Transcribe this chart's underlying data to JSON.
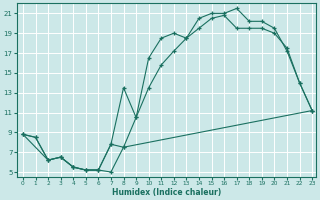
{
  "xlabel": "Humidex (Indice chaleur)",
  "bg_color": "#cce8e8",
  "grid_color": "#ffffff",
  "line_color": "#1a7060",
  "xlim": [
    -0.5,
    23.3
  ],
  "ylim": [
    4.5,
    22.0
  ],
  "xticks": [
    0,
    1,
    2,
    3,
    4,
    5,
    6,
    7,
    8,
    9,
    10,
    11,
    12,
    13,
    14,
    15,
    16,
    17,
    18,
    19,
    20,
    21,
    22,
    23
  ],
  "yticks": [
    5,
    7,
    9,
    11,
    13,
    15,
    17,
    19,
    21
  ],
  "line1_x": [
    0,
    1,
    2,
    3,
    4,
    5,
    6,
    7,
    8,
    9,
    10,
    11,
    12,
    13,
    14,
    15,
    16,
    17,
    18,
    19,
    20,
    21,
    22,
    23
  ],
  "line1_y": [
    8.8,
    8.5,
    6.2,
    6.5,
    5.5,
    5.2,
    5.2,
    7.8,
    13.5,
    10.5,
    16.5,
    18.5,
    19.0,
    18.5,
    20.5,
    21.0,
    21.0,
    21.5,
    20.2,
    20.2,
    19.5,
    17.2,
    14.0,
    11.2
  ],
  "line2_x": [
    0,
    1,
    2,
    3,
    4,
    5,
    6,
    7,
    8,
    9,
    10,
    11,
    12,
    13,
    14,
    15,
    16,
    17,
    18,
    19,
    20,
    21,
    22,
    23
  ],
  "line2_y": [
    8.8,
    8.5,
    6.2,
    6.5,
    5.5,
    5.2,
    5.2,
    5.0,
    7.5,
    10.5,
    13.5,
    15.8,
    17.2,
    18.5,
    19.5,
    20.5,
    20.8,
    19.5,
    19.5,
    19.5,
    19.0,
    17.5,
    14.0,
    11.2
  ],
  "line3_x": [
    0,
    2,
    3,
    4,
    5,
    6,
    7,
    8,
    23
  ],
  "line3_y": [
    8.8,
    6.2,
    6.5,
    5.5,
    5.2,
    5.2,
    7.8,
    7.5,
    11.2
  ]
}
